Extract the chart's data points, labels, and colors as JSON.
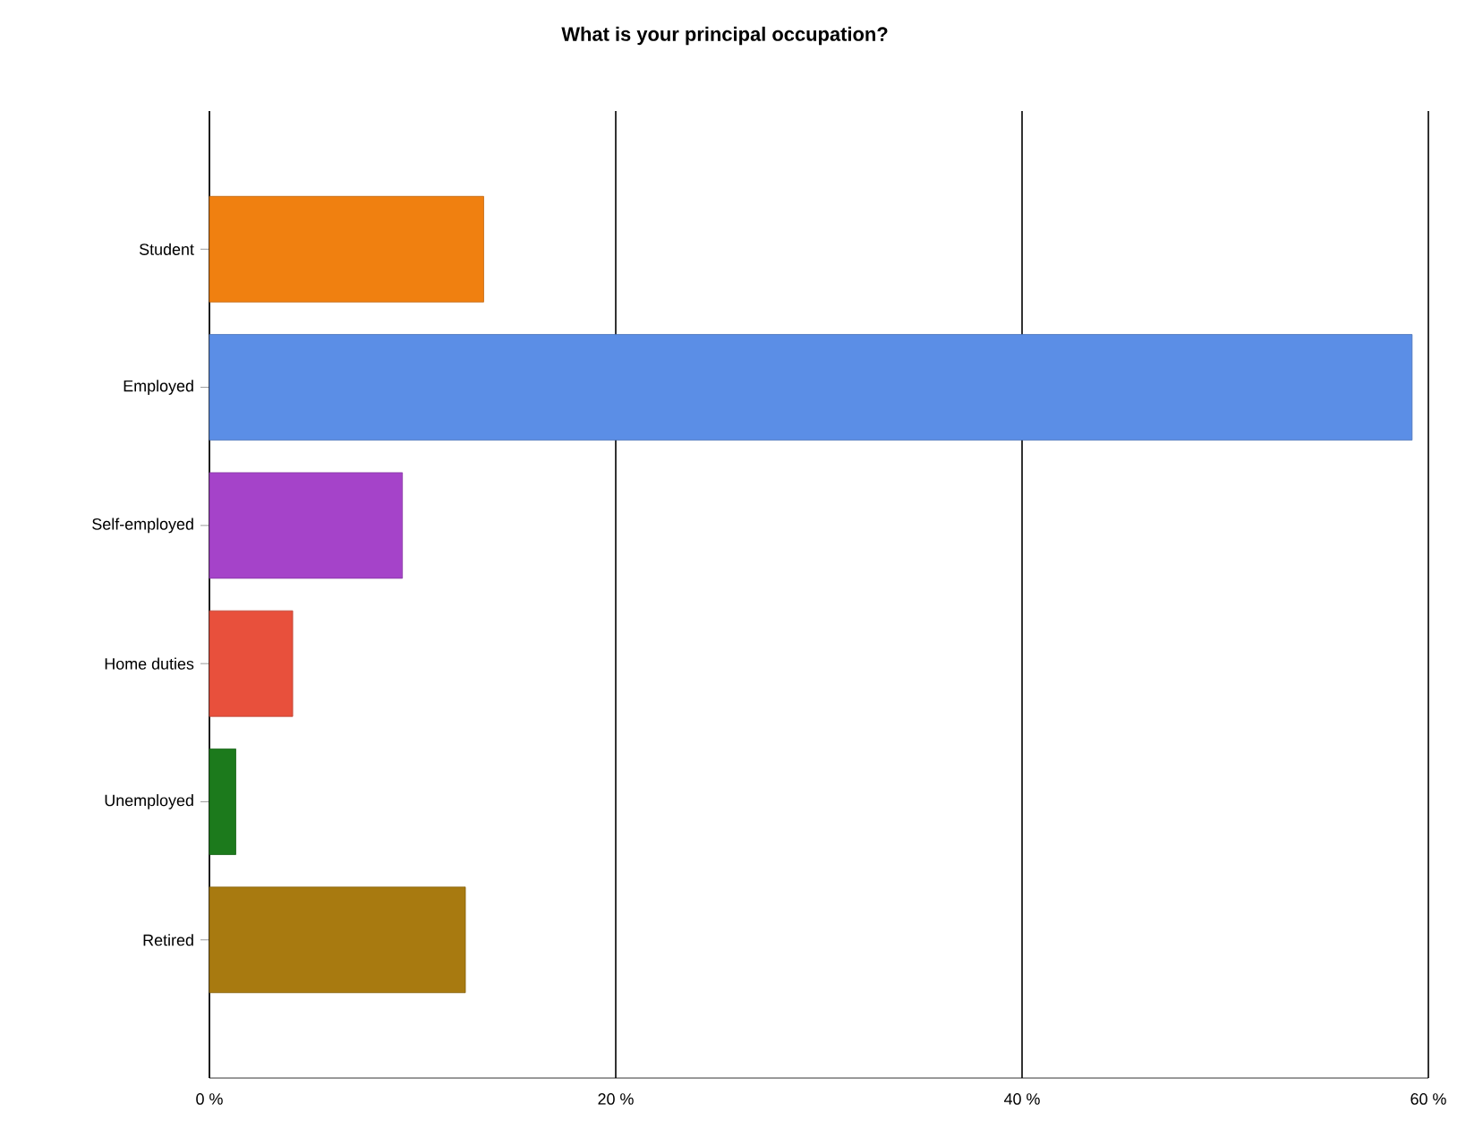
{
  "chart_data": {
    "type": "bar",
    "orientation": "horizontal",
    "title": "What is your principal occupation?",
    "categories": [
      "Student",
      "Employed",
      "Self-employed",
      "Home duties",
      "Unemployed",
      "Retired"
    ],
    "values": [
      13.5,
      59.2,
      9.5,
      4.1,
      1.3,
      12.6
    ],
    "colors": [
      "#f08010",
      "#5b8ee6",
      "#a543c9",
      "#e8503c",
      "#1c7a1c",
      "#a87a10"
    ],
    "xlim": [
      0,
      60
    ],
    "xticks": [
      {
        "value": 0,
        "label": "0 %"
      },
      {
        "value": 20,
        "label": "20 %"
      },
      {
        "value": 40,
        "label": "40 %"
      },
      {
        "value": 60,
        "label": "60 %"
      }
    ],
    "grid": "x"
  }
}
